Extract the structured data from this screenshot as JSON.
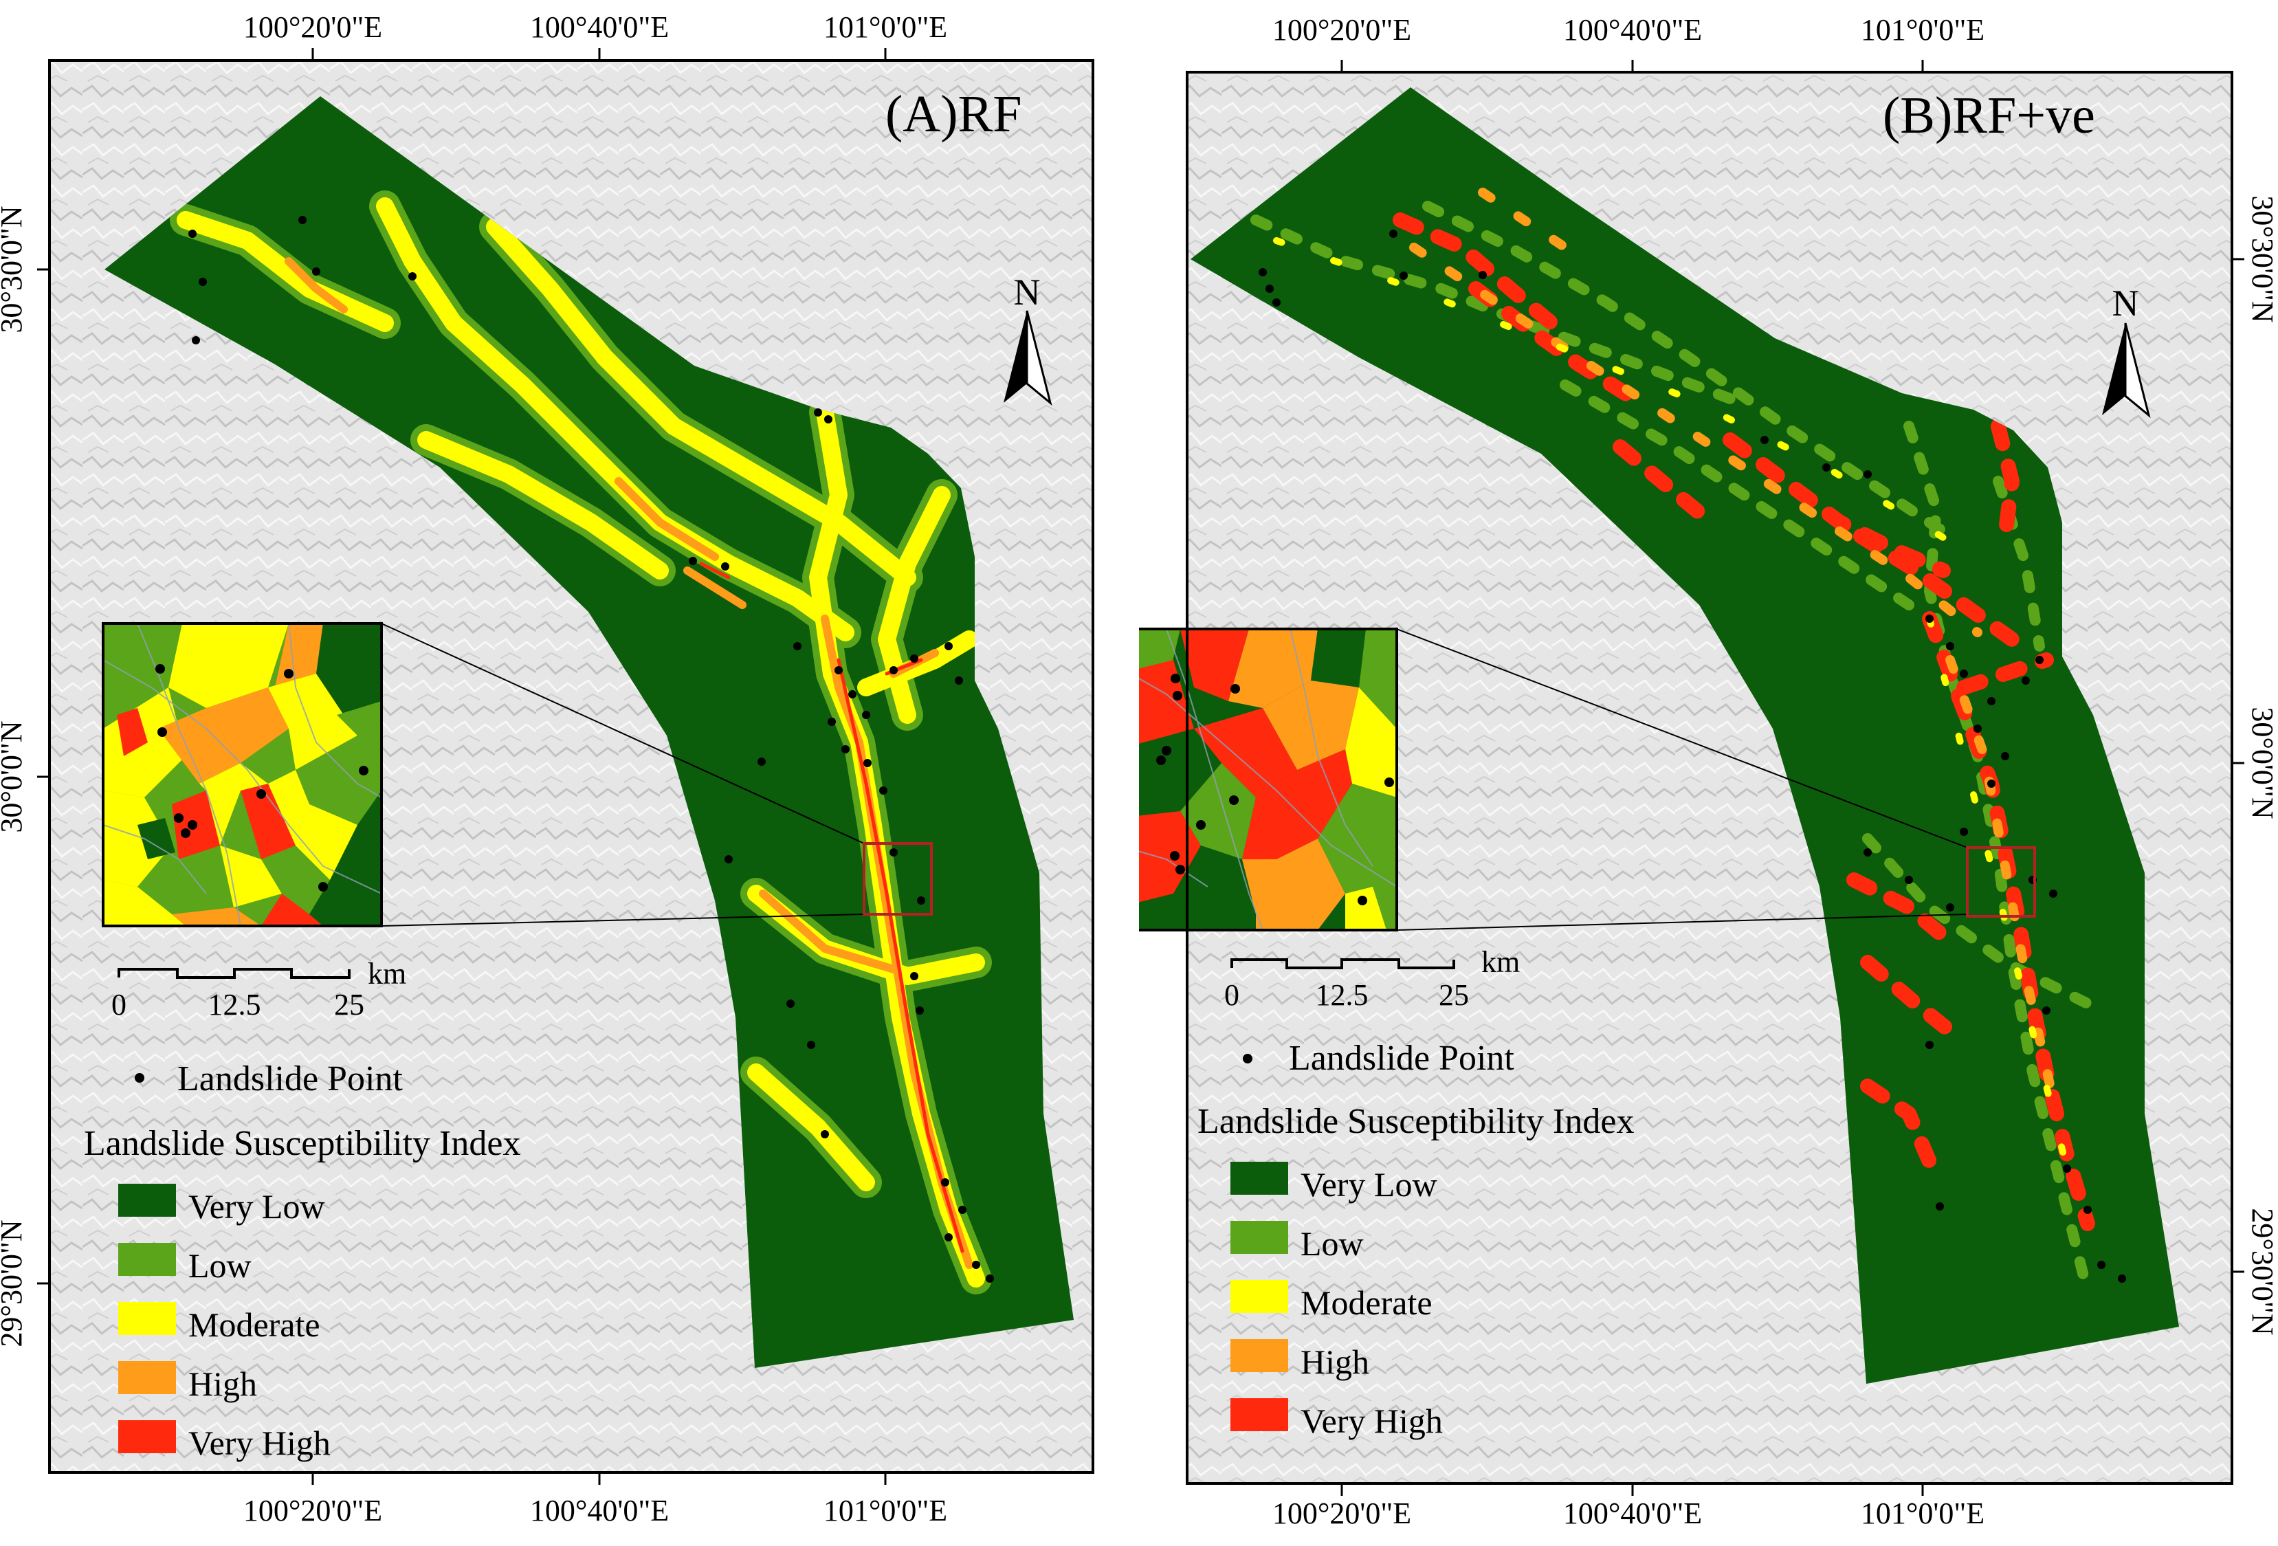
{
  "panels": [
    {
      "id": "A",
      "title": "(A)RF",
      "lon_ticks": [
        "100°20'0\"E",
        "100°40'0\"E",
        "101°0'0\"E"
      ],
      "lat_ticks": [
        "30°30'0\"N",
        "30°0'0\"N",
        "29°30'0\"N"
      ],
      "north": "N",
      "scale": {
        "values": [
          "0",
          "12.5",
          "25"
        ],
        "unit": "km"
      },
      "legend": {
        "point_label": "Landslide Point",
        "title": "Landslide Susceptibility Index",
        "classes": [
          {
            "label": "Very Low",
            "color": "#0b5c0b"
          },
          {
            "label": "Low",
            "color": "#5aa51a"
          },
          {
            "label": "Moderate",
            "color": "#ffff00"
          },
          {
            "label": "High",
            "color": "#ff9c1a"
          },
          {
            "label": "Very High",
            "color": "#ff2a0d"
          }
        ]
      }
    },
    {
      "id": "B",
      "title": "(B)RF+ve",
      "lon_ticks": [
        "100°20'0\"E",
        "100°40'0\"E",
        "101°0'0\"E"
      ],
      "lat_ticks": [
        "30°30'0\"N",
        "30°0'0\"N",
        "29°30'0\"N"
      ],
      "north": "N",
      "scale": {
        "values": [
          "0",
          "12.5",
          "25"
        ],
        "unit": "km"
      },
      "legend": {
        "point_label": "Landslide Point",
        "title": "Landslide Susceptibility Index",
        "classes": [
          {
            "label": "Very Low",
            "color": "#0b5c0b"
          },
          {
            "label": "Low",
            "color": "#5aa51a"
          },
          {
            "label": "Moderate",
            "color": "#ffff00"
          },
          {
            "label": "High",
            "color": "#ff9c1a"
          },
          {
            "label": "Very High",
            "color": "#ff2a0d"
          }
        ]
      }
    }
  ]
}
